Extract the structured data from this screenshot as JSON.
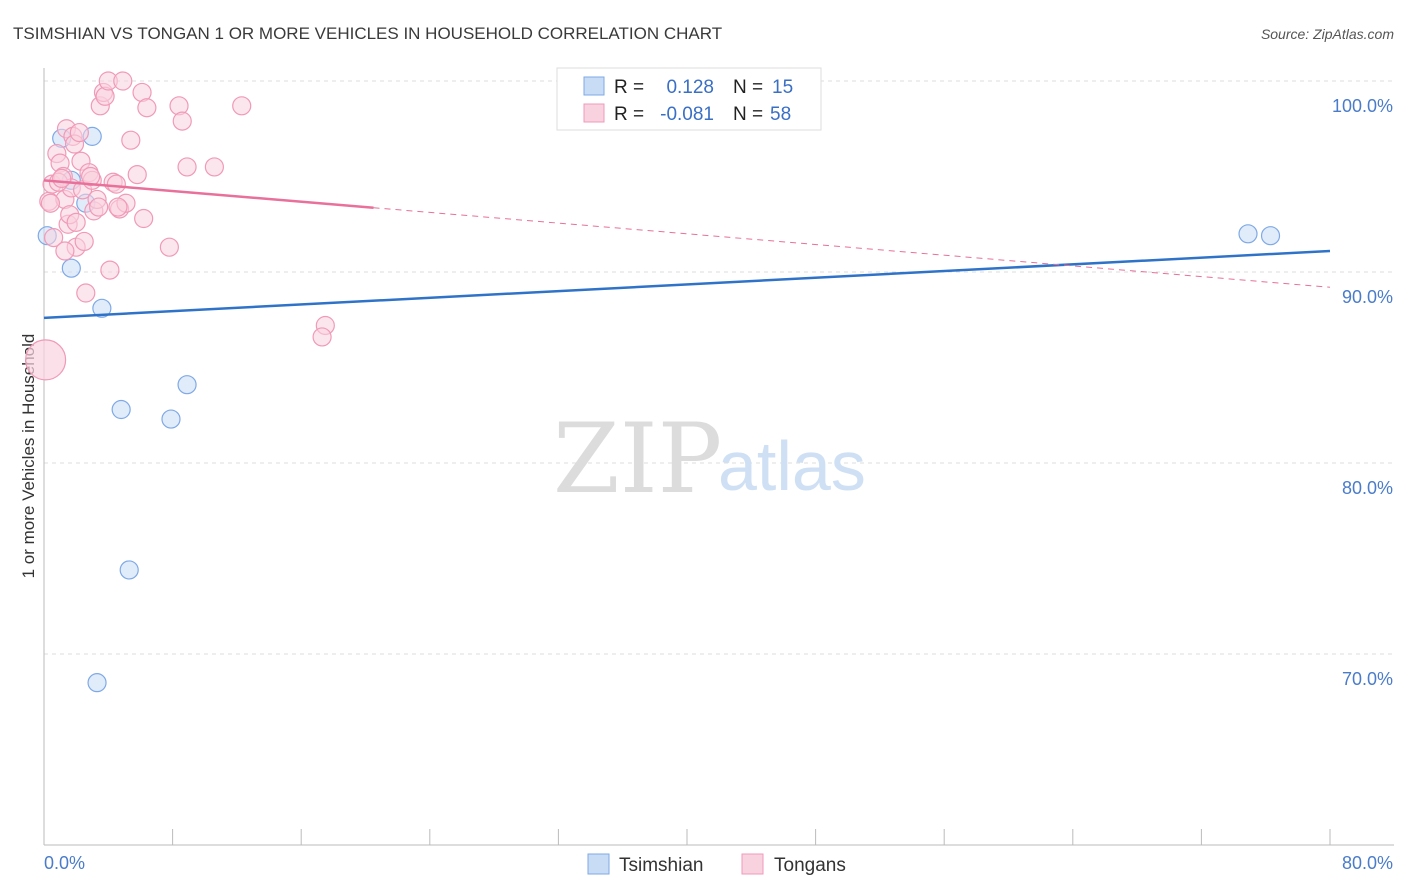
{
  "chart_data": {
    "type": "scatter",
    "title": "TSIMSHIAN VS TONGAN 1 OR MORE VEHICLES IN HOUSEHOLD CORRELATION CHART",
    "source": "Source: ZipAtlas.com",
    "ylabel": "1 or more Vehicles in Household",
    "xlim": [
      0,
      80
    ],
    "ylim": [
      60,
      102
    ],
    "x_tick_labels": [
      "0.0%",
      "80.0%"
    ],
    "y_ticks": [
      {
        "value": 70,
        "label": "70.0%"
      },
      {
        "value": 80,
        "label": "80.0%"
      },
      {
        "value": 90,
        "label": "90.0%"
      },
      {
        "value": 100,
        "label": "100.0%"
      }
    ],
    "grid": true,
    "watermark": {
      "zip": "ZIP",
      "atlas": "atlas"
    },
    "legend_stats": [
      {
        "r_label": "R =",
        "r_value": "0.128",
        "n_label": "N =",
        "n_value": "15"
      },
      {
        "r_label": "R =",
        "r_value": "-0.081",
        "n_label": "N =",
        "n_value": "58"
      }
    ],
    "series": [
      {
        "name": "Tsimshian",
        "color": "#7fa9e6",
        "fill": "#c9dcf6",
        "trend_color": "#2f73c9",
        "trend": {
          "x0": 0,
          "y0": 87.6,
          "x1": 80,
          "y1": 91.1,
          "solid_to": 80
        },
        "points": [
          [
            0.2,
            91.9
          ],
          [
            1.1,
            97.0
          ],
          [
            1.7,
            94.8
          ],
          [
            3.0,
            97.1
          ],
          [
            2.6,
            93.6
          ],
          [
            1.7,
            90.2
          ],
          [
            3.6,
            88.1
          ],
          [
            8.9,
            84.1
          ],
          [
            4.8,
            82.8
          ],
          [
            7.9,
            82.3
          ],
          [
            5.3,
            74.4
          ],
          [
            3.3,
            68.5
          ],
          [
            74.9,
            92.0
          ],
          [
            76.3,
            91.9
          ]
        ]
      },
      {
        "name": "Tongans",
        "color": "#f09ab8",
        "fill": "#f9d2df",
        "trend_color": "#e8709a",
        "trend": {
          "x0": 0,
          "y0": 94.8,
          "x1": 80,
          "y1": 89.2,
          "solid_to": 20.5
        },
        "points": [
          [
            0.3,
            93.7
          ],
          [
            0.5,
            94.6
          ],
          [
            0.6,
            91.8
          ],
          [
            0.8,
            96.2
          ],
          [
            1.0,
            95.7
          ],
          [
            1.2,
            95.0
          ],
          [
            1.3,
            93.8
          ],
          [
            1.4,
            97.5
          ],
          [
            1.5,
            92.5
          ],
          [
            1.6,
            93.0
          ],
          [
            1.7,
            94.4
          ],
          [
            1.8,
            97.1
          ],
          [
            1.9,
            96.7
          ],
          [
            2.0,
            92.6
          ],
          [
            2.0,
            91.3
          ],
          [
            2.2,
            97.3
          ],
          [
            2.3,
            95.8
          ],
          [
            2.4,
            94.3
          ],
          [
            2.5,
            91.6
          ],
          [
            2.6,
            88.9
          ],
          [
            2.8,
            95.2
          ],
          [
            3.0,
            94.8
          ],
          [
            3.1,
            93.2
          ],
          [
            3.3,
            93.8
          ],
          [
            3.5,
            98.7
          ],
          [
            3.7,
            99.4
          ],
          [
            3.8,
            99.2
          ],
          [
            4.0,
            100.0
          ],
          [
            4.1,
            90.1
          ],
          [
            4.3,
            94.7
          ],
          [
            4.5,
            94.6
          ],
          [
            4.7,
            93.3
          ],
          [
            4.9,
            100.0
          ],
          [
            5.1,
            93.6
          ],
          [
            5.4,
            96.9
          ],
          [
            5.8,
            95.1
          ],
          [
            6.1,
            99.4
          ],
          [
            6.2,
            92.8
          ],
          [
            6.4,
            98.6
          ],
          [
            7.8,
            91.3
          ],
          [
            8.4,
            98.7
          ],
          [
            8.6,
            97.9
          ],
          [
            8.9,
            95.5
          ],
          [
            10.6,
            95.5
          ],
          [
            12.3,
            98.7
          ],
          [
            17.5,
            87.2
          ],
          [
            17.3,
            86.6
          ],
          [
            0.4,
            93.6
          ],
          [
            0.9,
            94.7
          ],
          [
            1.3,
            91.1
          ],
          [
            2.9,
            95.0
          ],
          [
            3.4,
            93.4
          ],
          [
            4.6,
            93.4
          ],
          [
            1.1,
            94.9
          ]
        ],
        "big_point": [
          0.1,
          85.4
        ]
      }
    ],
    "legend_bottom": [
      "Tsimshian",
      "Tongans"
    ]
  }
}
